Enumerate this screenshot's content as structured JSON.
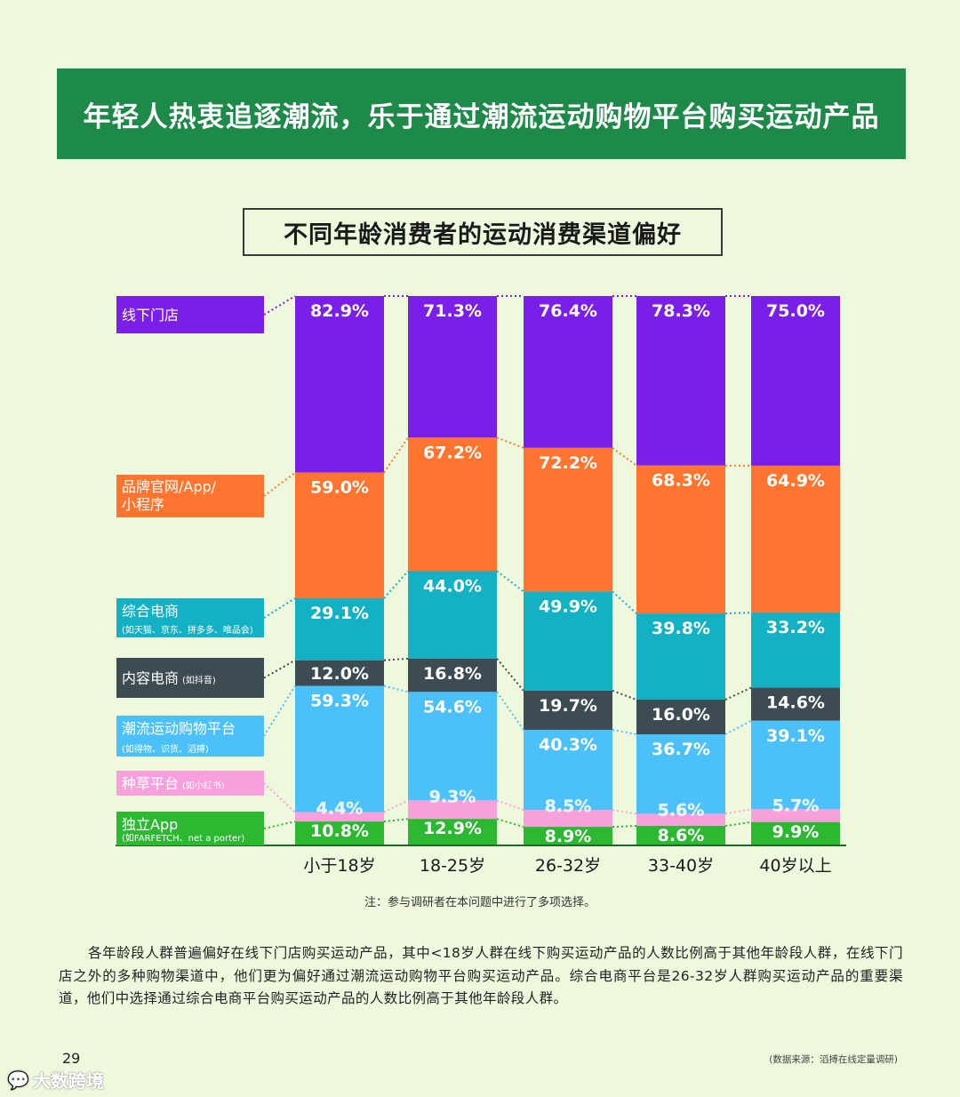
{
  "banner": {
    "title": "年轻人热衷追逐潮流，乐于通过潮流运动购物平台购买运动产品"
  },
  "colors": {
    "banner_bg": "#1e8a4a",
    "offline": "#7a1fe8",
    "brand": "#ff7530",
    "ecommerce": "#14b0c4",
    "content": "#3d4b52",
    "trend": "#4cc0f8",
    "grass": "#f7a0dc",
    "independent": "#2cb830"
  },
  "chart_data": {
    "type": "bar",
    "title": "不同年龄消费者的运动消费渠道偏好",
    "categories": [
      "小于18岁",
      "18-25岁",
      "26-32岁",
      "33-40岁",
      "40岁以上"
    ],
    "series": [
      {
        "name": "线下门店",
        "color": "#7a1fe8",
        "values": [
          82.9,
          71.3,
          76.4,
          78.3,
          75.0
        ]
      },
      {
        "name": "品牌官网/App/小程序",
        "color": "#ff7530",
        "values": [
          59.0,
          67.2,
          72.2,
          68.3,
          64.9
        ]
      },
      {
        "name": "综合电商",
        "note": "(如天猫、京东、拼多多、唯品会)",
        "color": "#14b0c4",
        "values": [
          29.1,
          44.0,
          49.9,
          39.8,
          33.2
        ]
      },
      {
        "name": "内容电商",
        "note": "(如抖音)",
        "color": "#3d4b52",
        "values": [
          12.0,
          16.8,
          19.7,
          16.0,
          14.6
        ]
      },
      {
        "name": "潮流运动购物平台",
        "note": "(如得物、识货、滔搏)",
        "color": "#4cc0f8",
        "values": [
          59.3,
          54.6,
          40.3,
          36.7,
          39.1
        ]
      },
      {
        "name": "种草平台",
        "note": "(如小红书)",
        "color": "#f7a0dc",
        "values": [
          4.4,
          9.3,
          8.5,
          5.6,
          5.7
        ]
      },
      {
        "name": "独立App",
        "note": "(如FARFETCH、net a porter)",
        "color": "#2cb830",
        "values": [
          10.8,
          12.9,
          8.9,
          8.6,
          9.9
        ]
      }
    ],
    "value_suffix": "%"
  },
  "legend_labels": {
    "offline": "线下门店",
    "brand_line1": "品牌官网/App/",
    "brand_line2": "小程序",
    "ecommerce": "综合电商",
    "ecommerce_note": "(如天猫、京东、拼多多、唯品会)",
    "content": "内容电商",
    "content_note": "(如抖音)",
    "trend": "潮流运动购物平台",
    "trend_note": "(如得物、识货、滔搏)",
    "grass": "种草平台",
    "grass_note": "(如小红书)",
    "independent": "独立App",
    "independent_note": "(如FARFETCH、net a porter)"
  },
  "note": "注：参与调研者在本问题中进行了多项选择。",
  "paragraph": "各年龄段人群普遍偏好在线下门店购买运动产品，其中<18岁人群在线下购买运动产品的人数比例高于其他年龄段人群，在线下门店之外的多种购物渠道中，他们更为偏好通过潮流运动购物平台购买运动产品。综合电商平台是26-32岁人群购买运动产品的重要渠道，他们中选择通过综合电商平台购买运动产品的人数比例高于其他年龄段人群。",
  "page_number": "29",
  "source": "(数据来源：滔搏在线定量调研)",
  "watermark": {
    "icon": "chat-bubble-icon",
    "text": "大数跨境"
  }
}
